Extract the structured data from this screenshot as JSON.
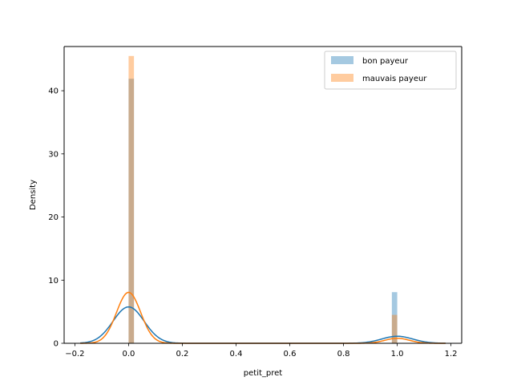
{
  "chart_data": {
    "type": "histogram",
    "title": "",
    "xlabel": "petit_pret",
    "ylabel": "Density",
    "xlim": [
      -0.24,
      1.24
    ],
    "ylim": [
      0,
      47
    ],
    "x_ticks": [
      -0.2,
      0.0,
      0.2,
      0.4,
      0.6,
      0.8,
      1.0,
      1.2
    ],
    "x_tick_labels": [
      "−0.2",
      "0.0",
      "0.2",
      "0.4",
      "0.6",
      "0.8",
      "1.0",
      "1.2"
    ],
    "y_ticks": [
      0,
      10,
      20,
      30,
      40
    ],
    "y_tick_labels": [
      "0",
      "10",
      "20",
      "30",
      "40"
    ],
    "grid": false,
    "legend_position": "upper right",
    "bin_width": 0.02,
    "series": [
      {
        "name": "bon payeur",
        "color": "#1f77b4",
        "bar_alpha": 0.4,
        "bins": [
          {
            "x": 0.0,
            "height": 41.9
          },
          {
            "x": 0.98,
            "height": 8.1
          }
        ],
        "kde": {
          "components": [
            {
              "center": 0.0,
              "sd": 0.058,
              "weight": 0.838
            },
            {
              "center": 1.0,
              "sd": 0.058,
              "weight": 0.162
            }
          ]
        }
      },
      {
        "name": "mauvais payeur",
        "color": "#ff7f0e",
        "bar_alpha": 0.4,
        "bins": [
          {
            "x": 0.0,
            "height": 45.5
          },
          {
            "x": 0.98,
            "height": 4.5
          }
        ],
        "kde": {
          "components": [
            {
              "center": 0.0,
              "sd": 0.045,
              "weight": 0.91
            },
            {
              "center": 1.0,
              "sd": 0.045,
              "weight": 0.09
            }
          ]
        }
      }
    ]
  }
}
